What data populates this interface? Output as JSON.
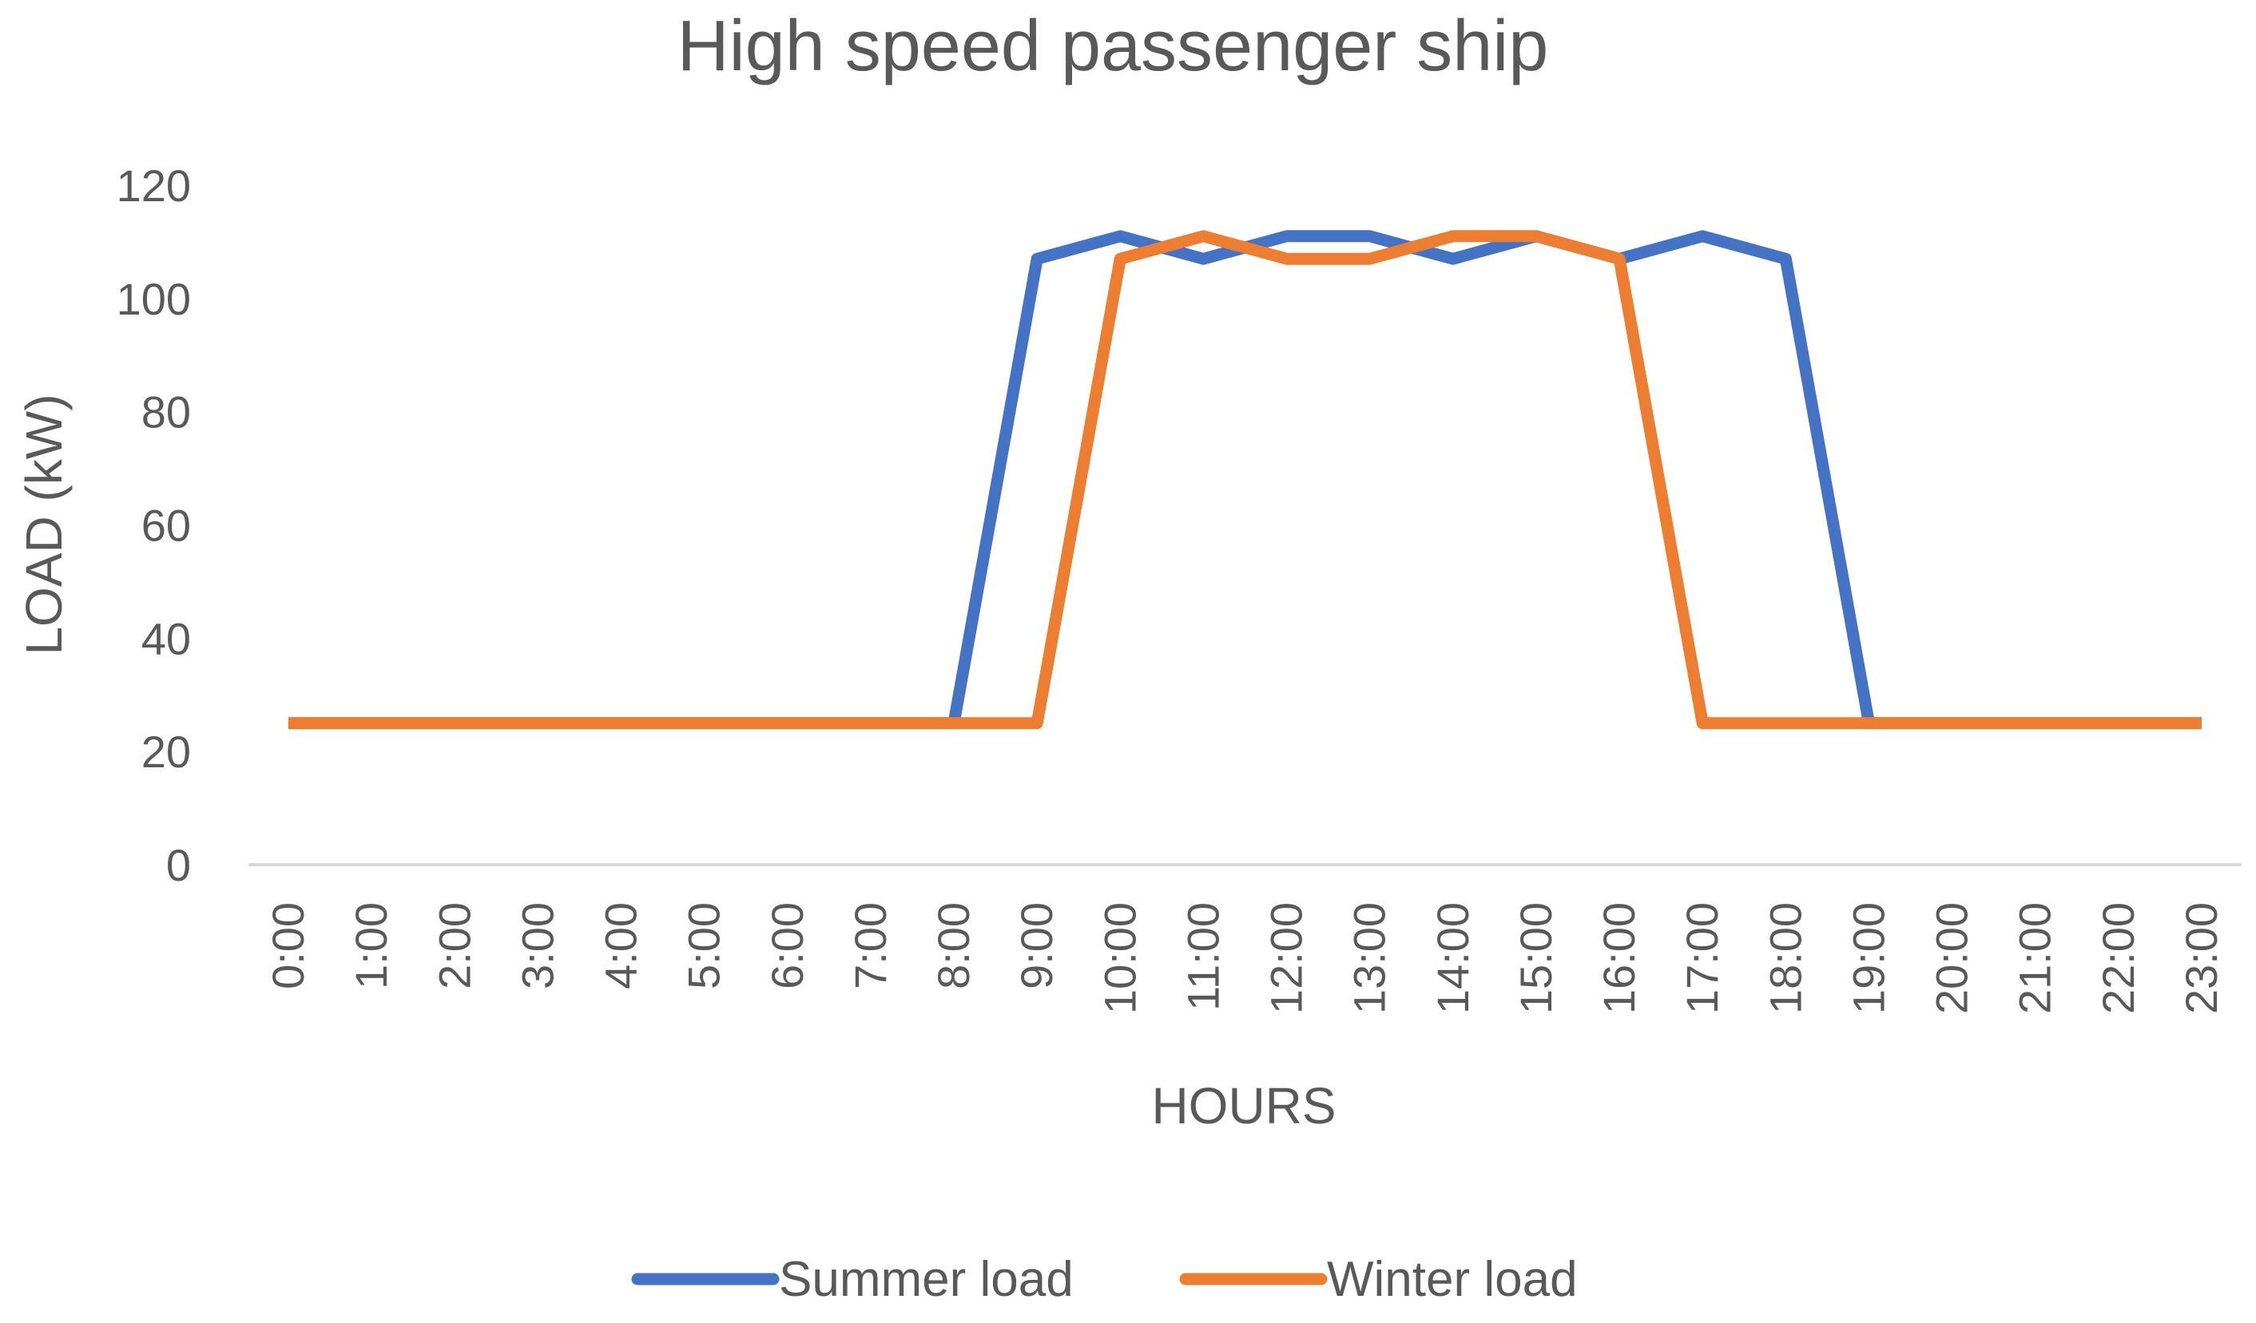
{
  "chart_data": {
    "type": "line",
    "title": "High speed passenger ship",
    "xlabel": "HOURS",
    "ylabel": "LOAD (kW)",
    "ylim": [
      0,
      120
    ],
    "yticks": [
      "0",
      "20",
      "40",
      "60",
      "80",
      "100",
      "120"
    ],
    "grid": false,
    "legend_position": "bottom",
    "categories": [
      "0:00",
      "1:00",
      "2:00",
      "3:00",
      "4:00",
      "5:00",
      "6:00",
      "7:00",
      "8:00",
      "9:00",
      "10:00",
      "11:00",
      "12:00",
      "13:00",
      "14:00",
      "15:00",
      "16:00",
      "17:00",
      "18:00",
      "19:00",
      "20:00",
      "21:00",
      "22:00",
      "23:00"
    ],
    "series": [
      {
        "name": "Summer load",
        "color": "#4472C4",
        "values": [
          25,
          25,
          25,
          25,
          25,
          25,
          25,
          25,
          25,
          107,
          111,
          107,
          111,
          111,
          107,
          111,
          107,
          111,
          107,
          25,
          25,
          25,
          25,
          25
        ]
      },
      {
        "name": "Winter load",
        "color": "#ED7D31",
        "values": [
          25,
          25,
          25,
          25,
          25,
          25,
          25,
          25,
          25,
          25,
          107,
          111,
          107,
          107,
          111,
          111,
          107,
          25,
          25,
          25,
          25,
          25,
          25,
          25
        ]
      }
    ]
  }
}
